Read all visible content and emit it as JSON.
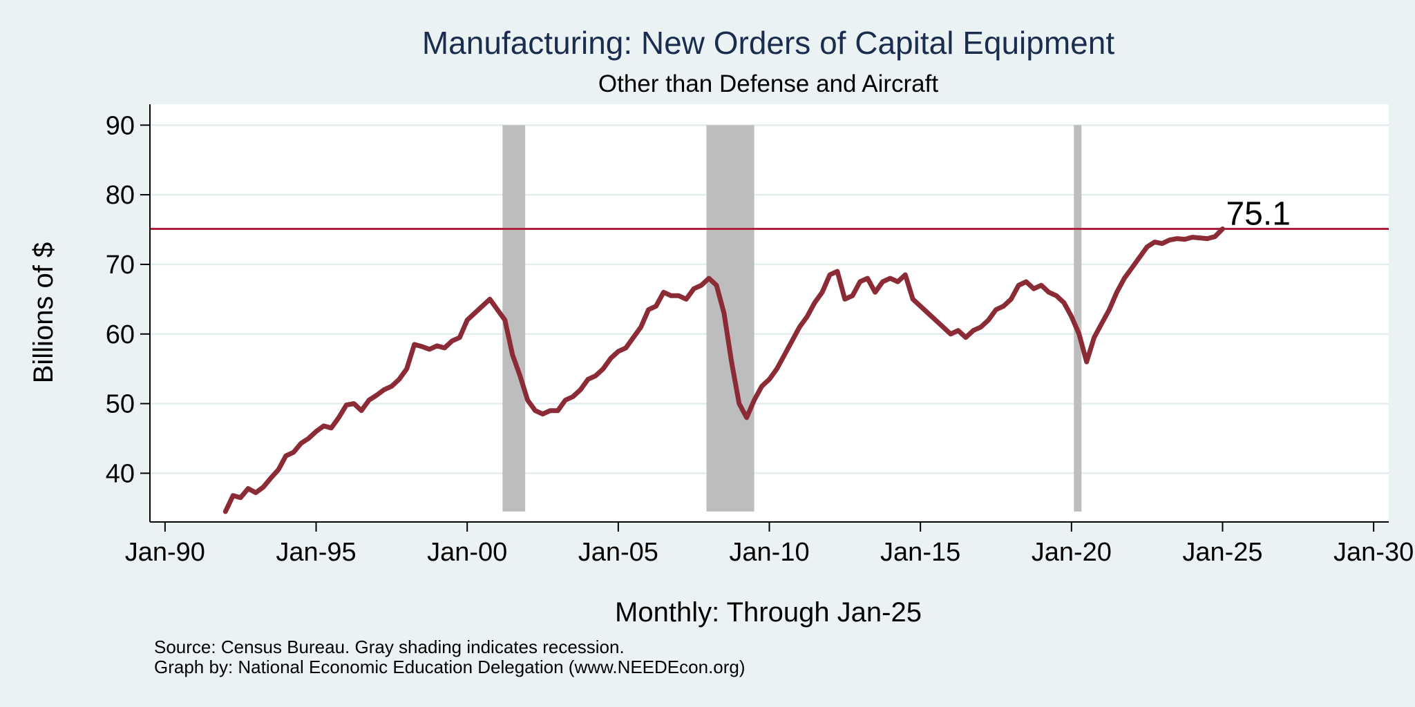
{
  "chart_data": {
    "type": "line",
    "title": "Manufacturing: New Orders of Capital Equipment",
    "subtitle": "Other than Defense and Aircraft",
    "ylabel": "Billions of $",
    "xlabel": "Monthly: Through Jan-25",
    "notes": [
      "Source: Census Bureau. Gray shading indicates recession.",
      "Graph by: National Economic Education Delegation (www.NEEDEcon.org)"
    ],
    "ylim": [
      33,
      93
    ],
    "xlim": [
      1989.5,
      2030.5
    ],
    "yticks": [
      40,
      50,
      60,
      70,
      80,
      90
    ],
    "xticks": [
      {
        "value": 1990,
        "label": "Jan-90"
      },
      {
        "value": 1995,
        "label": "Jan-95"
      },
      {
        "value": 2000,
        "label": "Jan-00"
      },
      {
        "value": 2005,
        "label": "Jan-05"
      },
      {
        "value": 2010,
        "label": "Jan-10"
      },
      {
        "value": 2015,
        "label": "Jan-15"
      },
      {
        "value": 2020,
        "label": "Jan-20"
      },
      {
        "value": 2025,
        "label": "Jan-25"
      },
      {
        "value": 2030,
        "label": "Jan-30"
      }
    ],
    "grid": true,
    "legend": "none",
    "line_color": "#8b2b35",
    "reference_line": {
      "value": 75.1,
      "label": "75.1",
      "color": "#b0203a"
    },
    "recessions": [
      {
        "start": 2001.17,
        "end": 2001.92
      },
      {
        "start": 2007.92,
        "end": 2009.5
      },
      {
        "start": 2020.08,
        "end": 2020.33
      }
    ],
    "series": [
      {
        "x": [
          1992.0,
          1992.25,
          1992.5,
          1992.75,
          1993.0,
          1993.25,
          1993.5,
          1993.75,
          1994.0,
          1994.25,
          1994.5,
          1994.75,
          1995.0,
          1995.25,
          1995.5,
          1995.75,
          1996.0,
          1996.25,
          1996.5,
          1996.75,
          1997.0,
          1997.25,
          1997.5,
          1997.75,
          1998.0,
          1998.25,
          1998.5,
          1998.75,
          1999.0,
          1999.25,
          1999.5,
          1999.75,
          2000.0,
          2000.25,
          2000.5,
          2000.75,
          2001.0,
          2001.25,
          2001.5,
          2001.75,
          2002.0,
          2002.25,
          2002.5,
          2002.75,
          2003.0,
          2003.25,
          2003.5,
          2003.75,
          2004.0,
          2004.25,
          2004.5,
          2004.75,
          2005.0,
          2005.25,
          2005.5,
          2005.75,
          2006.0,
          2006.25,
          2006.5,
          2006.75,
          2007.0,
          2007.25,
          2007.5,
          2007.75,
          2008.0,
          2008.25,
          2008.5,
          2008.75,
          2009.0,
          2009.25,
          2009.5,
          2009.75,
          2010.0,
          2010.25,
          2010.5,
          2010.75,
          2011.0,
          2011.25,
          2011.5,
          2011.75,
          2012.0,
          2012.25,
          2012.5,
          2012.75,
          2013.0,
          2013.25,
          2013.5,
          2013.75,
          2014.0,
          2014.25,
          2014.5,
          2014.75,
          2015.0,
          2015.25,
          2015.5,
          2015.75,
          2016.0,
          2016.25,
          2016.5,
          2016.75,
          2017.0,
          2017.25,
          2017.5,
          2017.75,
          2018.0,
          2018.25,
          2018.5,
          2018.75,
          2019.0,
          2019.25,
          2019.5,
          2019.75,
          2020.0,
          2020.25,
          2020.5,
          2020.75,
          2021.0,
          2021.25,
          2021.5,
          2021.75,
          2022.0,
          2022.25,
          2022.5,
          2022.75,
          2023.0,
          2023.25,
          2023.5,
          2023.75,
          2024.0,
          2024.25,
          2024.5,
          2024.75,
          2025.0
        ],
        "values": [
          34.5,
          36.8,
          36.5,
          37.8,
          37.2,
          38.0,
          39.3,
          40.5,
          42.5,
          43.0,
          44.3,
          45.0,
          46.0,
          46.8,
          46.5,
          48.0,
          49.8,
          50.0,
          49.0,
          50.5,
          51.2,
          52.0,
          52.5,
          53.5,
          55.0,
          58.5,
          58.2,
          57.8,
          58.3,
          58.0,
          59.0,
          59.5,
          62.0,
          63.0,
          64.0,
          65.0,
          63.5,
          62.0,
          57.0,
          54.0,
          50.5,
          49.0,
          48.5,
          49.0,
          49.0,
          50.5,
          51.0,
          52.0,
          53.5,
          54.0,
          55.0,
          56.5,
          57.5,
          58.0,
          59.5,
          61.0,
          63.5,
          64.0,
          66.0,
          65.5,
          65.5,
          65.0,
          66.5,
          67.0,
          68.0,
          67.0,
          63.0,
          56.0,
          50.0,
          48.0,
          50.5,
          52.5,
          53.5,
          55.0,
          57.0,
          59.0,
          61.0,
          62.5,
          64.5,
          66.0,
          68.5,
          69.0,
          65.0,
          65.5,
          67.5,
          68.0,
          66.0,
          67.5,
          68.0,
          67.5,
          68.5,
          65.0,
          64.0,
          63.0,
          62.0,
          61.0,
          60.0,
          60.5,
          59.5,
          60.5,
          61.0,
          62.0,
          63.5,
          64.0,
          65.0,
          67.0,
          67.5,
          66.5,
          67.0,
          66.0,
          65.5,
          64.5,
          62.5,
          60.0,
          56.0,
          59.5,
          61.5,
          63.5,
          66.0,
          68.0,
          69.5,
          71.0,
          72.5,
          73.2,
          73.0,
          73.5,
          73.7,
          73.6,
          73.9,
          73.8,
          73.7,
          74.0,
          75.1
        ]
      }
    ]
  }
}
